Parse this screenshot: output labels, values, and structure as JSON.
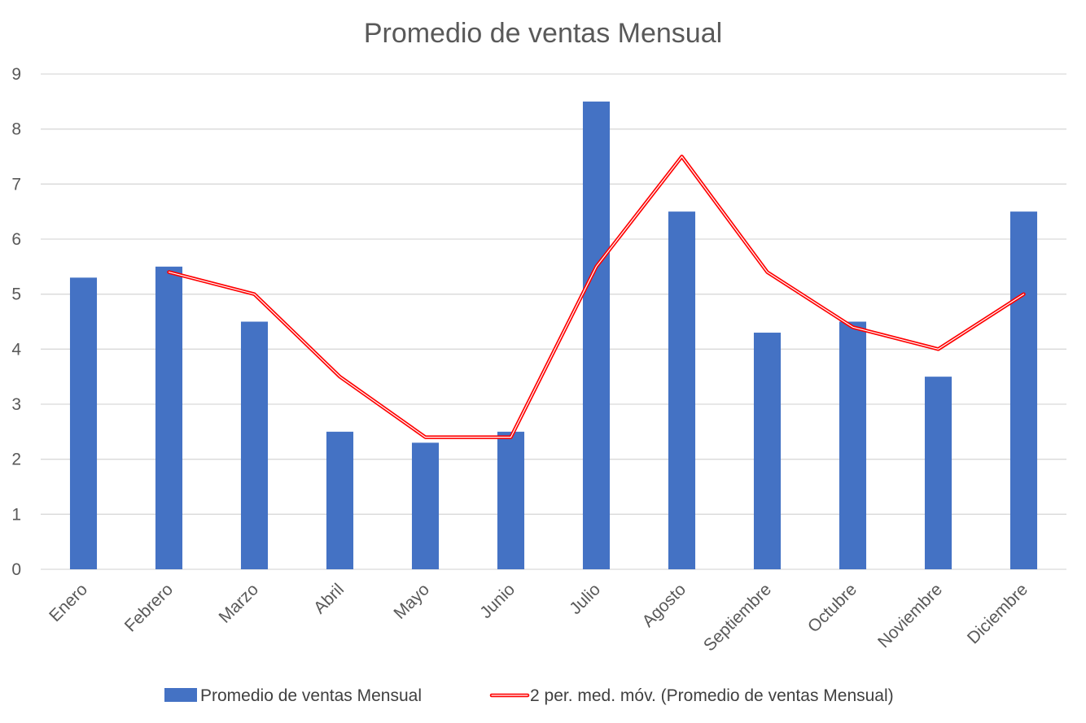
{
  "chart_data": {
    "type": "bar",
    "title": "Promedio de ventas Mensual",
    "xlabel": "",
    "ylabel": "",
    "ylim": [
      0,
      9
    ],
    "yticks": [
      "0",
      "1",
      "2",
      "3",
      "4",
      "5",
      "6",
      "7",
      "8",
      "9"
    ],
    "categories": [
      "Enero",
      "Febrero",
      "Marzo",
      "Abril",
      "Mayo",
      "Junio",
      "Julio",
      "Agosto",
      "Septiembre",
      "Octubre",
      "Noviembre",
      "Diciembre"
    ],
    "series": [
      {
        "name": "Promedio de ventas Mensual",
        "type": "bar",
        "color": "#4472c4",
        "values": [
          5.3,
          5.5,
          4.5,
          2.5,
          2.3,
          2.5,
          8.5,
          6.5,
          4.3,
          4.5,
          3.5,
          6.5
        ]
      },
      {
        "name": "2 per. med. móv. (Promedio de ventas Mensual)",
        "type": "line",
        "color": "#ff0000",
        "values": [
          null,
          5.4,
          5.0,
          3.5,
          2.4,
          2.4,
          5.5,
          7.5,
          5.4,
          4.4,
          4.0,
          5.0
        ]
      }
    ],
    "grid": true,
    "legend_position": "bottom"
  }
}
